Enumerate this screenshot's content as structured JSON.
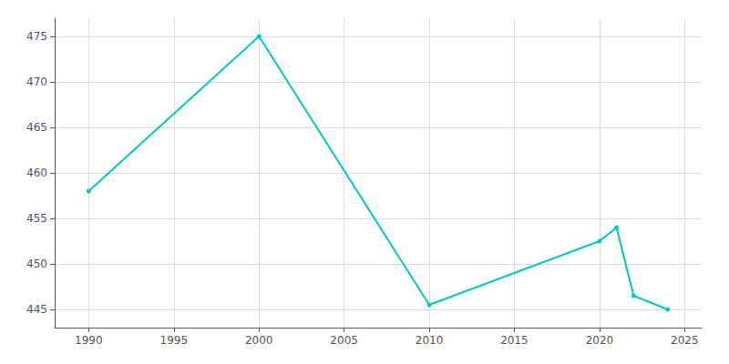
{
  "chart_data": {
    "type": "line",
    "x": [
      1990,
      2000,
      2010,
      2020,
      2021,
      2022,
      2024
    ],
    "values": [
      458,
      475,
      445.5,
      452.5,
      454,
      446.5,
      445
    ],
    "color": "#00c8c8",
    "marker": "circle",
    "xlim": [
      1988,
      2026
    ],
    "xticks": [
      1990,
      1995,
      2000,
      2005,
      2010,
      2015,
      2020,
      2025
    ],
    "ylim": [
      443,
      477
    ],
    "yticks": [
      445,
      450,
      455,
      460,
      465,
      470,
      475
    ],
    "grid": true
  }
}
